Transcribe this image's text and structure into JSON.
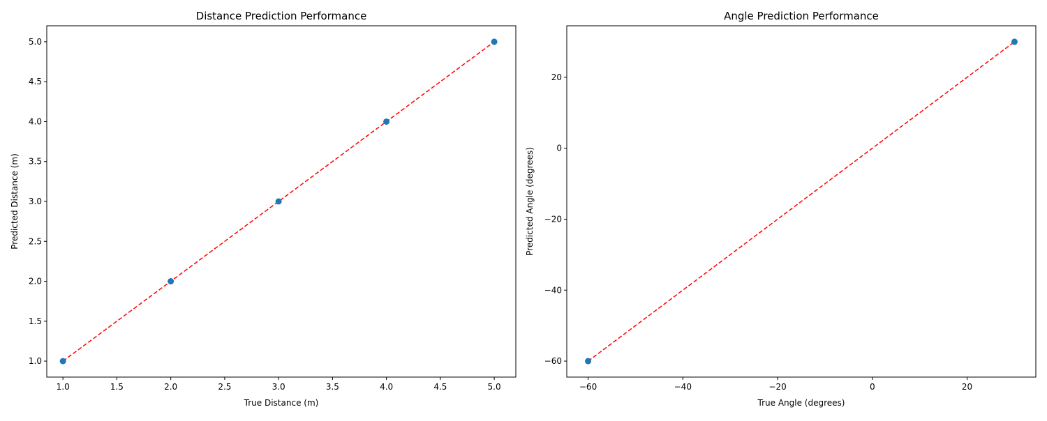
{
  "chart_data": [
    {
      "type": "scatter",
      "title": "Distance Prediction Performance",
      "xlabel": "True Distance (m)",
      "ylabel": "Predicted Distance (m)",
      "xlim": [
        0.85,
        5.2
      ],
      "ylim": [
        0.8,
        5.2
      ],
      "xticks": [
        1.0,
        1.5,
        2.0,
        2.5,
        3.0,
        3.5,
        4.0,
        4.5,
        5.0
      ],
      "xtick_labels": [
        "1.0",
        "1.5",
        "2.0",
        "2.5",
        "3.0",
        "3.5",
        "4.0",
        "4.5",
        "5.0"
      ],
      "yticks": [
        1.0,
        1.5,
        2.0,
        2.5,
        3.0,
        3.5,
        4.0,
        4.5,
        5.0
      ],
      "ytick_labels": [
        "1.0",
        "1.5",
        "2.0",
        "2.5",
        "3.0",
        "3.5",
        "4.0",
        "4.5",
        "5.0"
      ],
      "points": {
        "x": [
          1,
          2,
          3,
          4,
          5
        ],
        "y": [
          1,
          2,
          3,
          4,
          5
        ],
        "color": "#1f77b4"
      },
      "reference_line": {
        "x": [
          1,
          5
        ],
        "y": [
          1,
          5
        ],
        "color": "#ff0000",
        "style": "dashed"
      },
      "grid": false
    },
    {
      "type": "scatter",
      "title": "Angle Prediction Performance",
      "xlabel": "True Angle (degrees)",
      "ylabel": "Predicted Angle (degrees)",
      "xlim": [
        -64.5,
        34.5
      ],
      "ylim": [
        -64.5,
        34.5
      ],
      "xticks": [
        -60,
        -40,
        -20,
        0,
        20
      ],
      "xtick_labels": [
        "−60",
        "−40",
        "−20",
        "0",
        "20"
      ],
      "yticks": [
        -60,
        -40,
        -20,
        0,
        20
      ],
      "ytick_labels": [
        "−60",
        "−40",
        "−20",
        "0",
        "20"
      ],
      "points": {
        "x": [
          -60,
          30
        ],
        "y": [
          -60,
          30
        ],
        "color": "#1f77b4"
      },
      "reference_line": {
        "x": [
          -60,
          30
        ],
        "y": [
          -60,
          30
        ],
        "color": "#ff0000",
        "style": "dashed"
      },
      "grid": false
    }
  ]
}
